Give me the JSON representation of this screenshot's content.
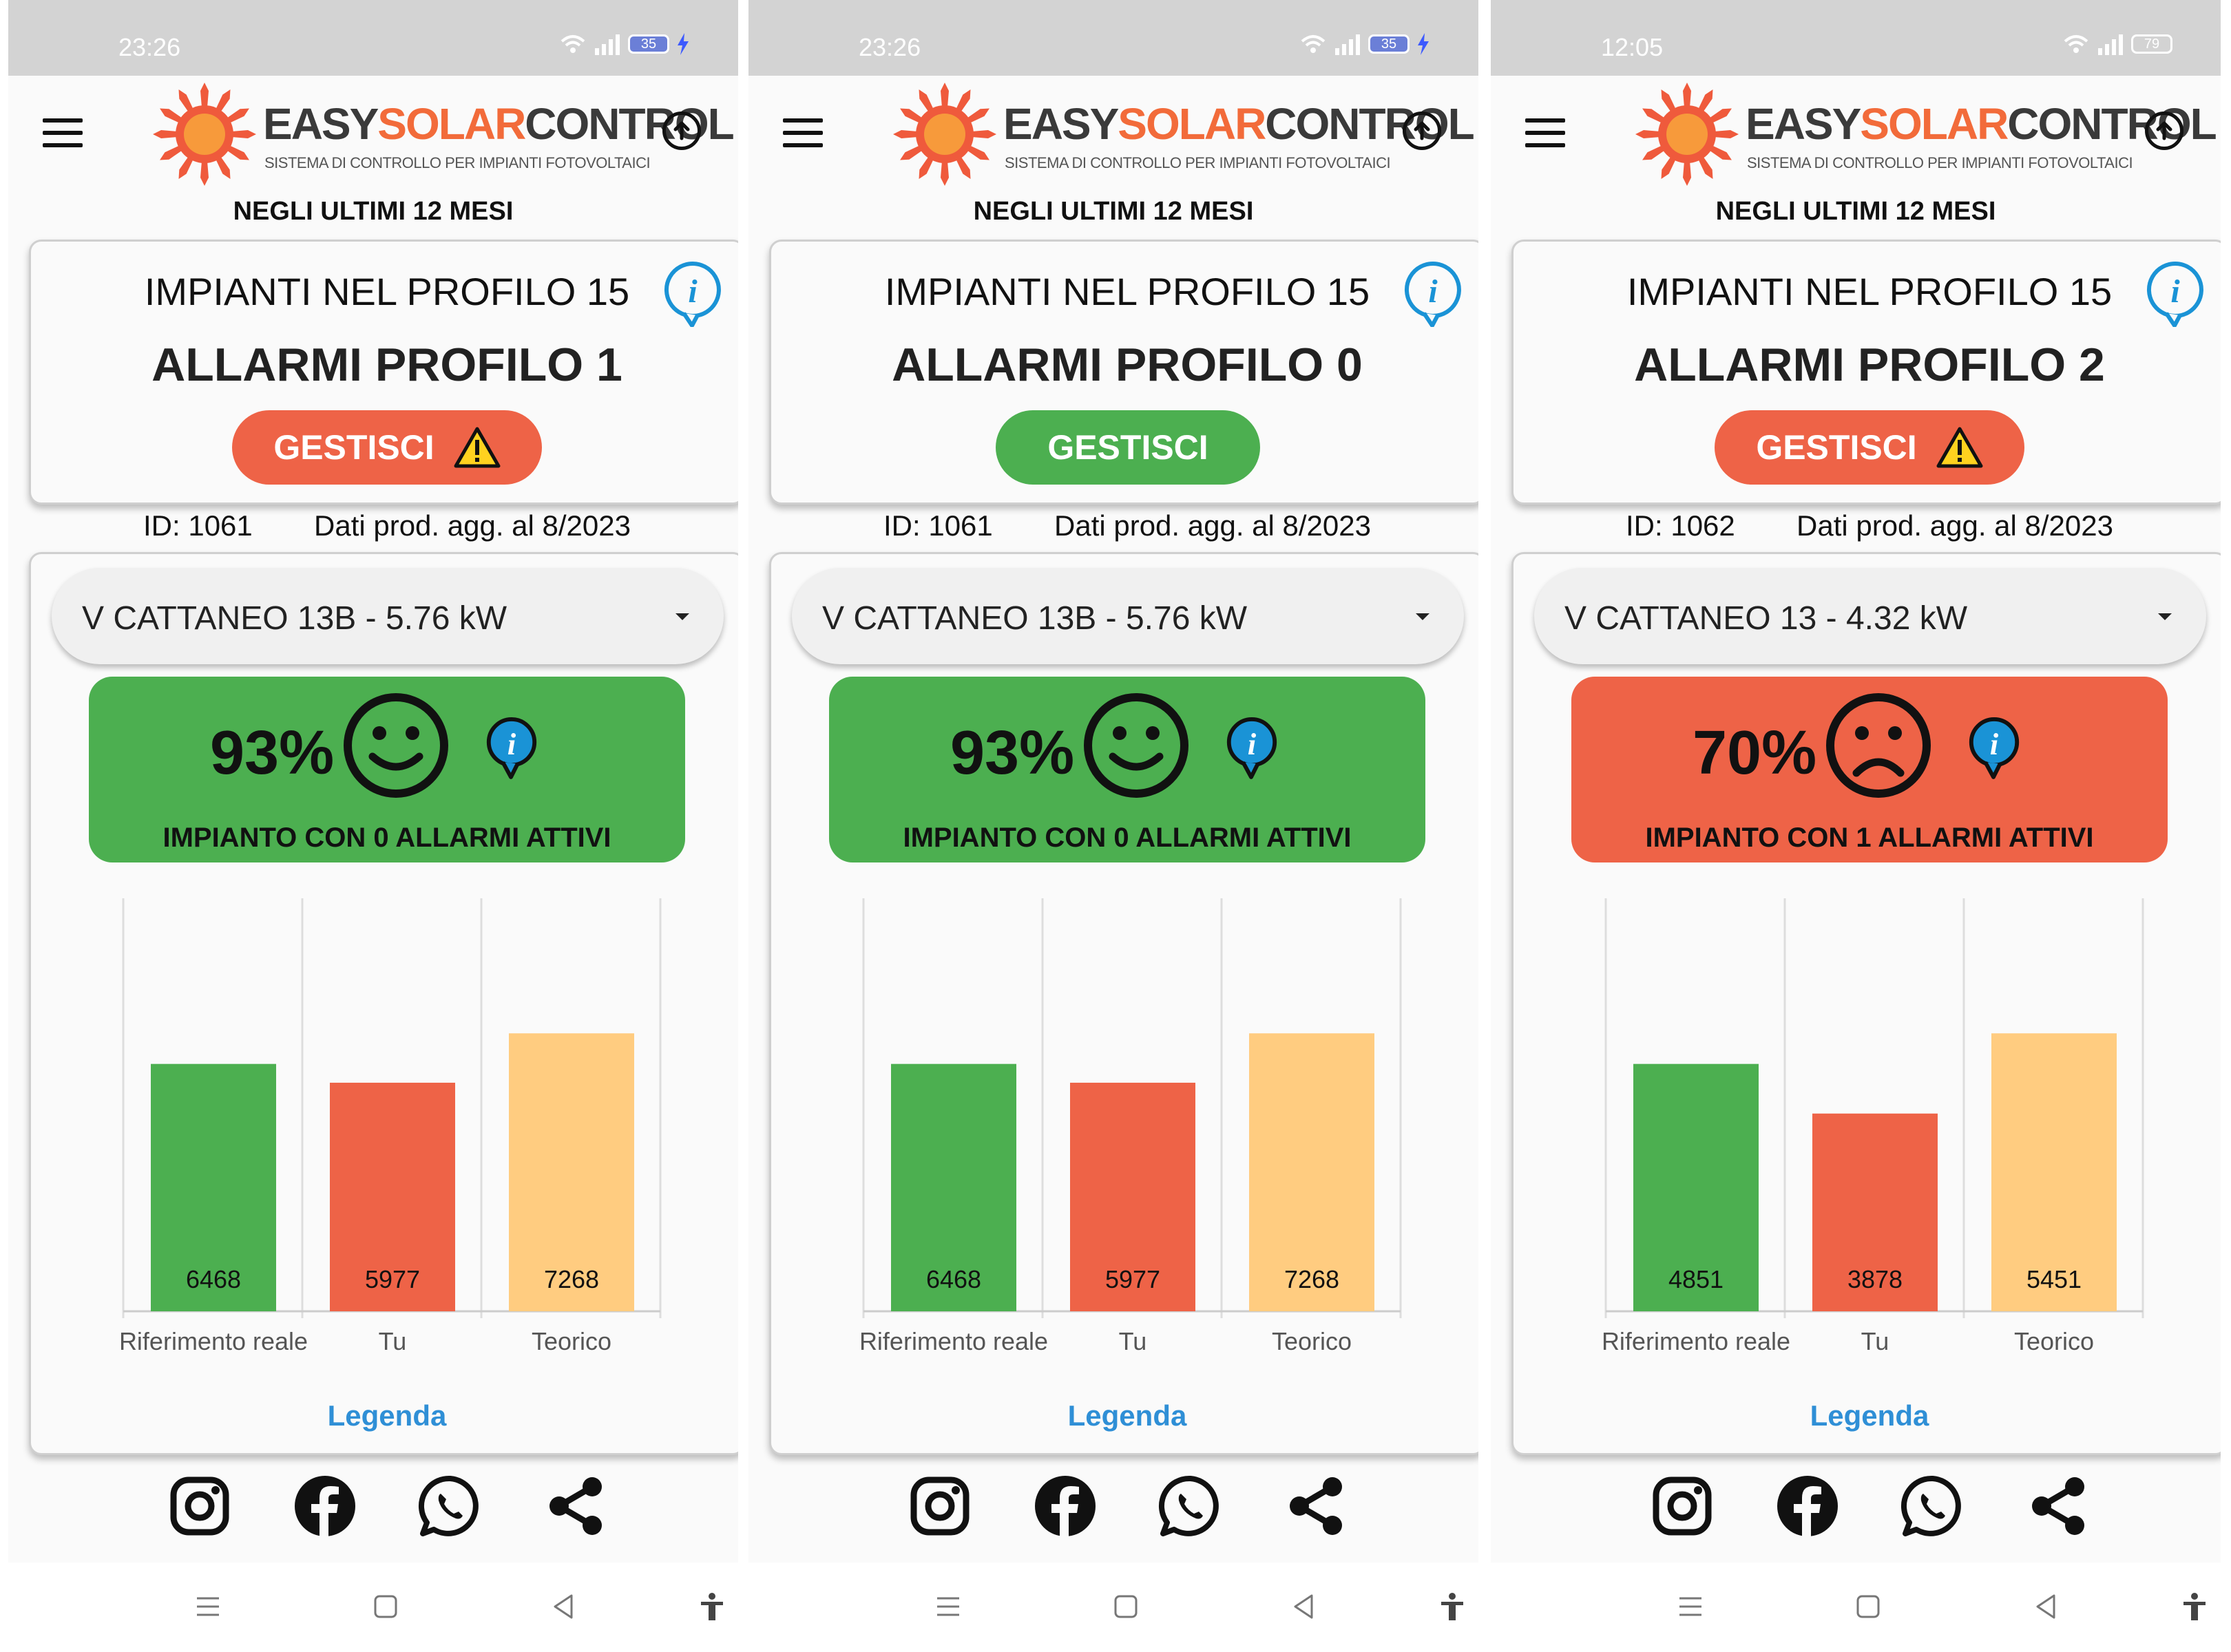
{
  "logo": {
    "part1": "EASY",
    "part2": "SOLAR",
    "part3": "CONTROL",
    "subtitle": "SISTEMA DI CONTROLLO PER IMPIANTI FOTOVOLTAICI"
  },
  "colors": {
    "green": "#4caf50",
    "red": "#ee6347",
    "yellow": "#ffcc80",
    "link": "#2f8fd6"
  },
  "screens": [
    {
      "status": {
        "time": "23:26",
        "battery": "35"
      },
      "period": "NEGLI ULTIMI 12 MESI",
      "card": {
        "line1": "IMPIANTI NEL PROFILO 15",
        "line2": "ALLARMI PROFILO 1",
        "button": "GESTISCI",
        "button_color": "red",
        "warning": true
      },
      "meta": {
        "id": "ID: 1061",
        "updated": "Dati prod. agg. al 8/2023"
      },
      "plant": "V CATTANEO 13B - 5.76 kW",
      "performance": {
        "percent": "93%",
        "status": "IMPIANTO CON 0 ALLARMI ATTIVI",
        "color": "green",
        "face": "happy-face-icon"
      },
      "legend_link": "Legenda"
    },
    {
      "status": {
        "time": "23:26",
        "battery": "35"
      },
      "period": "NEGLI ULTIMI 12 MESI",
      "card": {
        "line1": "IMPIANTI NEL PROFILO 15",
        "line2": "ALLARMI PROFILO 0",
        "button": "GESTISCI",
        "button_color": "green",
        "warning": false
      },
      "meta": {
        "id": "ID: 1061",
        "updated": "Dati prod. agg. al 8/2023"
      },
      "plant": "V CATTANEO 13B - 5.76 kW",
      "performance": {
        "percent": "93%",
        "status": "IMPIANTO CON 0 ALLARMI ATTIVI",
        "color": "green",
        "face": "happy-face-icon"
      },
      "legend_link": "Legenda"
    },
    {
      "status": {
        "time": "12:05",
        "battery": "79"
      },
      "period": "NEGLI ULTIMI 12 MESI",
      "card": {
        "line1": "IMPIANTI NEL PROFILO 15",
        "line2": "ALLARMI PROFILO 2",
        "button": "GESTISCI",
        "button_color": "red",
        "warning": true
      },
      "meta": {
        "id": "ID: 1062",
        "updated": "Dati prod. agg. al 8/2023"
      },
      "plant": "V CATTANEO 13 - 4.32 kW",
      "performance": {
        "percent": "70%",
        "status": "IMPIANTO CON 1 ALLARMI ATTIVI",
        "color": "red",
        "face": "sad-face-icon"
      },
      "legend_link": "Legenda"
    }
  ],
  "chart_data": [
    {
      "type": "bar",
      "categories": [
        "Riferimento reale",
        "Tu",
        "Teorico"
      ],
      "values": [
        6468,
        5977,
        7268
      ],
      "colors": [
        "#4caf50",
        "#ee6347",
        "#ffcc80"
      ],
      "ylim": [
        0,
        10800
      ],
      "grid": "vertical"
    },
    {
      "type": "bar",
      "categories": [
        "Riferimento reale",
        "Tu",
        "Teorico"
      ],
      "values": [
        6468,
        5977,
        7268
      ],
      "colors": [
        "#4caf50",
        "#ee6347",
        "#ffcc80"
      ],
      "ylim": [
        0,
        10800
      ],
      "grid": "vertical"
    },
    {
      "type": "bar",
      "categories": [
        "Riferimento reale",
        "Tu",
        "Teorico"
      ],
      "values": [
        4851,
        3878,
        5451
      ],
      "colors": [
        "#4caf50",
        "#ee6347",
        "#ffcc80"
      ],
      "ylim": [
        0,
        8100
      ],
      "grid": "vertical"
    }
  ],
  "social_icons": [
    "instagram-icon",
    "facebook-icon",
    "whatsapp-icon",
    "share-icon"
  ],
  "nav_icons": [
    "menu-lines-icon",
    "home-square-icon",
    "back-triangle-icon",
    "accessibility-icon"
  ]
}
